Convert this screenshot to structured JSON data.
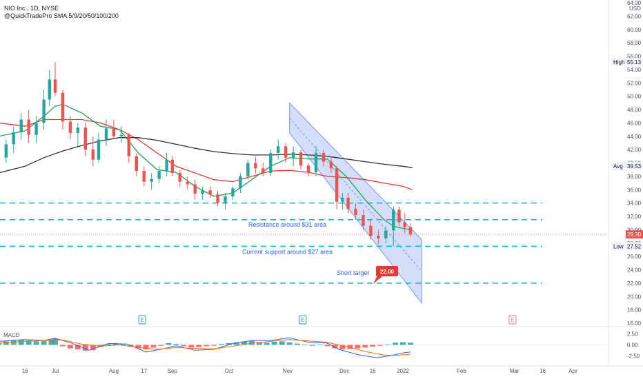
{
  "header": {
    "line1": "NIO Inc., 1D, NYSE",
    "line2": "@QuickTradePro SMA 5/9/20/50/100/200"
  },
  "chart_data": {
    "type": "candlestick",
    "y_axis": {
      "unit": "USD",
      "range": [
        16,
        64
      ],
      "ticks": [
        "64.00",
        "62.00",
        "60.00",
        "58.00",
        "56.00",
        "54.00",
        "52.00",
        "50.00",
        "48.00",
        "46.00",
        "44.00",
        "42.00",
        "40.00",
        "38.00",
        "36.00",
        "34.00",
        "32.00",
        "30.00",
        "28.00",
        "26.00",
        "24.00",
        "22.00",
        "20.00",
        "18.00",
        "16.00"
      ]
    },
    "x_axis": {
      "ticks": [
        {
          "label": "16",
          "day": 0
        },
        {
          "label": "Jul",
          "day": 16
        },
        {
          "label": "Aug",
          "day": 47
        },
        {
          "label": "17",
          "day": 63
        },
        {
          "label": "Sep",
          "day": 78
        },
        {
          "label": "Oct",
          "day": 108
        },
        {
          "label": "Nov",
          "day": 139
        },
        {
          "label": "Dec",
          "day": 169
        },
        {
          "label": "16",
          "day": 184
        },
        {
          "label": "2022",
          "day": 200
        },
        {
          "label": "Feb",
          "day": 231
        },
        {
          "label": "Mar",
          "day": 259
        },
        {
          "label": "16",
          "day": 274
        },
        {
          "label": "Apr",
          "day": 290
        }
      ]
    },
    "ohlc_samples": [
      {
        "day": -14,
        "o": 39.5,
        "h": 41.5,
        "l": 38.5,
        "c": 40.8
      },
      {
        "day": -10,
        "o": 40.8,
        "h": 43.5,
        "l": 40.0,
        "c": 42.8
      },
      {
        "day": -6,
        "o": 42.8,
        "h": 45.5,
        "l": 41.5,
        "c": 44.6
      },
      {
        "day": -2,
        "o": 44.6,
        "h": 47.5,
        "l": 43.5,
        "c": 46.5
      },
      {
        "day": 2,
        "o": 46.5,
        "h": 48.0,
        "l": 43.0,
        "c": 44.2
      },
      {
        "day": 6,
        "o": 44.2,
        "h": 47.0,
        "l": 43.0,
        "c": 46.0
      },
      {
        "day": 10,
        "o": 46.0,
        "h": 51.0,
        "l": 45.0,
        "c": 49.5
      },
      {
        "day": 13,
        "o": 49.5,
        "h": 54.0,
        "l": 48.5,
        "c": 52.5
      },
      {
        "day": 16,
        "o": 52.5,
        "h": 55.13,
        "l": 50.0,
        "c": 50.5
      },
      {
        "day": 20,
        "o": 50.5,
        "h": 51.0,
        "l": 45.0,
        "c": 46.2
      },
      {
        "day": 24,
        "o": 46.2,
        "h": 47.0,
        "l": 43.5,
        "c": 44.5
      },
      {
        "day": 28,
        "o": 44.5,
        "h": 46.0,
        "l": 42.5,
        "c": 45.3
      },
      {
        "day": 32,
        "o": 45.3,
        "h": 46.0,
        "l": 41.0,
        "c": 42.0
      },
      {
        "day": 36,
        "o": 42.0,
        "h": 44.0,
        "l": 39.5,
        "c": 40.5
      },
      {
        "day": 39,
        "o": 40.5,
        "h": 44.5,
        "l": 40.0,
        "c": 43.5
      },
      {
        "day": 43,
        "o": 43.5,
        "h": 46.5,
        "l": 42.5,
        "c": 45.2
      },
      {
        "day": 47,
        "o": 45.2,
        "h": 46.5,
        "l": 43.5,
        "c": 44.0
      },
      {
        "day": 51,
        "o": 44.0,
        "h": 45.5,
        "l": 43.0,
        "c": 44.2
      },
      {
        "day": 55,
        "o": 44.2,
        "h": 44.5,
        "l": 40.0,
        "c": 41.0
      },
      {
        "day": 59,
        "o": 41.0,
        "h": 41.5,
        "l": 38.0,
        "c": 38.8
      },
      {
        "day": 63,
        "o": 38.8,
        "h": 39.5,
        "l": 36.5,
        "c": 37.2
      },
      {
        "day": 67,
        "o": 37.2,
        "h": 38.5,
        "l": 36.0,
        "c": 37.6
      },
      {
        "day": 71,
        "o": 37.6,
        "h": 39.5,
        "l": 37.0,
        "c": 38.8
      },
      {
        "day": 75,
        "o": 38.8,
        "h": 41.5,
        "l": 38.0,
        "c": 40.5
      },
      {
        "day": 78,
        "o": 40.5,
        "h": 41.0,
        "l": 38.0,
        "c": 38.5
      },
      {
        "day": 82,
        "o": 38.5,
        "h": 39.0,
        "l": 36.5,
        "c": 37.2
      },
      {
        "day": 86,
        "o": 37.2,
        "h": 38.0,
        "l": 36.0,
        "c": 36.8
      },
      {
        "day": 90,
        "o": 36.8,
        "h": 37.5,
        "l": 34.5,
        "c": 35.4
      },
      {
        "day": 94,
        "o": 35.4,
        "h": 36.5,
        "l": 34.5,
        "c": 35.9
      },
      {
        "day": 98,
        "o": 35.9,
        "h": 36.5,
        "l": 34.8,
        "c": 35.3
      },
      {
        "day": 102,
        "o": 35.3,
        "h": 35.8,
        "l": 33.5,
        "c": 34.0
      },
      {
        "day": 106,
        "o": 34.0,
        "h": 35.5,
        "l": 33.0,
        "c": 35.0
      },
      {
        "day": 110,
        "o": 35.0,
        "h": 36.5,
        "l": 34.5,
        "c": 36.2
      },
      {
        "day": 114,
        "o": 36.2,
        "h": 38.5,
        "l": 35.5,
        "c": 38.0
      },
      {
        "day": 118,
        "o": 38.0,
        "h": 40.5,
        "l": 37.5,
        "c": 40.0
      },
      {
        "day": 122,
        "o": 40.0,
        "h": 41.0,
        "l": 38.5,
        "c": 39.2
      },
      {
        "day": 126,
        "o": 39.2,
        "h": 40.0,
        "l": 38.0,
        "c": 38.5
      },
      {
        "day": 130,
        "o": 38.5,
        "h": 42.0,
        "l": 38.0,
        "c": 41.5
      },
      {
        "day": 134,
        "o": 41.5,
        "h": 43.5,
        "l": 40.5,
        "c": 42.5
      },
      {
        "day": 138,
        "o": 42.5,
        "h": 43.0,
        "l": 40.0,
        "c": 40.8
      },
      {
        "day": 142,
        "o": 40.8,
        "h": 42.5,
        "l": 39.5,
        "c": 41.6
      },
      {
        "day": 146,
        "o": 41.6,
        "h": 42.0,
        "l": 39.0,
        "c": 39.6
      },
      {
        "day": 150,
        "o": 39.6,
        "h": 40.0,
        "l": 38.0,
        "c": 38.6
      },
      {
        "day": 154,
        "o": 38.6,
        "h": 42.5,
        "l": 38.0,
        "c": 41.5
      },
      {
        "day": 158,
        "o": 41.5,
        "h": 42.0,
        "l": 39.5,
        "c": 40.2
      },
      {
        "day": 162,
        "o": 40.2,
        "h": 41.0,
        "l": 38.5,
        "c": 39.2
      },
      {
        "day": 165,
        "o": 39.2,
        "h": 39.5,
        "l": 33.0,
        "c": 34.2
      },
      {
        "day": 168,
        "o": 34.2,
        "h": 35.5,
        "l": 33.0,
        "c": 34.8
      },
      {
        "day": 171,
        "o": 34.8,
        "h": 35.5,
        "l": 32.5,
        "c": 33.1
      },
      {
        "day": 175,
        "o": 33.1,
        "h": 34.0,
        "l": 31.5,
        "c": 32.2
      },
      {
        "day": 179,
        "o": 32.2,
        "h": 33.0,
        "l": 30.0,
        "c": 30.6
      },
      {
        "day": 183,
        "o": 30.6,
        "h": 31.5,
        "l": 28.5,
        "c": 29.1
      },
      {
        "day": 187,
        "o": 29.1,
        "h": 30.0,
        "l": 27.8,
        "c": 28.7
      },
      {
        "day": 191,
        "o": 28.7,
        "h": 30.5,
        "l": 28.0,
        "c": 29.9
      },
      {
        "day": 195,
        "o": 29.9,
        "h": 33.5,
        "l": 27.52,
        "c": 33.0
      },
      {
        "day": 198,
        "o": 33.0,
        "h": 33.5,
        "l": 30.5,
        "c": 31.1
      },
      {
        "day": 201,
        "o": 31.1,
        "h": 32.5,
        "l": 29.5,
        "c": 30.4
      },
      {
        "day": 204,
        "o": 30.4,
        "h": 31.0,
        "l": 29.0,
        "c": 29.3
      }
    ],
    "sma_50": [
      [
        -14,
        46.0
      ],
      [
        0,
        45.5
      ],
      [
        10,
        46.5
      ],
      [
        20,
        46.5
      ],
      [
        30,
        46.5
      ],
      [
        40,
        46.0
      ],
      [
        50,
        45.0
      ],
      [
        60,
        43.5
      ],
      [
        70,
        41.5
      ],
      [
        80,
        39.5
      ],
      [
        90,
        38.5
      ],
      [
        100,
        37.5
      ],
      [
        110,
        37.2
      ],
      [
        120,
        38.0
      ],
      [
        130,
        38.8
      ],
      [
        140,
        38.9
      ],
      [
        150,
        38.6
      ],
      [
        160,
        38.0
      ],
      [
        170,
        37.8
      ],
      [
        180,
        37.5
      ],
      [
        190,
        37.0
      ],
      [
        200,
        36.5
      ],
      [
        205,
        36.0
      ]
    ],
    "sma_100": [
      [
        -14,
        38.5
      ],
      [
        0,
        39.5
      ],
      [
        10,
        40.8
      ],
      [
        20,
        41.8
      ],
      [
        30,
        42.6
      ],
      [
        40,
        43.3
      ],
      [
        50,
        43.8
      ],
      [
        60,
        43.8
      ],
      [
        70,
        43.4
      ],
      [
        80,
        42.8
      ],
      [
        90,
        42.2
      ],
      [
        100,
        41.7
      ],
      [
        110,
        41.4
      ],
      [
        120,
        41.2
      ],
      [
        130,
        41.2
      ],
      [
        140,
        41.3
      ],
      [
        150,
        41.2
      ],
      [
        160,
        41.0
      ],
      [
        170,
        40.6
      ],
      [
        180,
        40.2
      ],
      [
        190,
        39.8
      ],
      [
        200,
        39.5
      ],
      [
        205,
        39.3
      ]
    ],
    "sma_20": [
      [
        -14,
        44.0
      ],
      [
        0,
        44.8
      ],
      [
        10,
        47.0
      ],
      [
        16,
        48.5
      ],
      [
        20,
        48.8
      ],
      [
        30,
        47.5
      ],
      [
        40,
        45.5
      ],
      [
        50,
        45.0
      ],
      [
        60,
        41.5
      ],
      [
        70,
        39.0
      ],
      [
        80,
        38.6
      ],
      [
        90,
        36.5
      ],
      [
        100,
        35.0
      ],
      [
        110,
        35.5
      ],
      [
        120,
        37.5
      ],
      [
        130,
        39.5
      ],
      [
        140,
        40.8
      ],
      [
        150,
        40.6
      ],
      [
        160,
        40.6
      ],
      [
        170,
        38.0
      ],
      [
        180,
        34.5
      ],
      [
        190,
        31.5
      ],
      [
        195,
        30.5
      ],
      [
        200,
        30.2
      ],
      [
        204,
        30.0
      ]
    ],
    "last_price": 29.3,
    "price_labels": [
      {
        "name": "High",
        "value": "55.13"
      },
      {
        "name": "Avg",
        "value": "39.53"
      },
      {
        "name": "Low",
        "value": "27.52"
      }
    ],
    "levels": [
      {
        "price": 34.0,
        "label": ""
      },
      {
        "price": 31.5,
        "label": "Resistance around $31 area"
      },
      {
        "price": 27.52,
        "label": "Current support around $27 area"
      },
      {
        "price": 22.0,
        "label": "Short target"
      }
    ],
    "channel": {
      "upper": [
        [
          140,
          49.0
        ],
        [
          210,
          28.5
        ]
      ],
      "lower": [
        [
          140,
          44.5
        ],
        [
          210,
          19.0
        ]
      ]
    },
    "target_badge": "22.00",
    "earnings_marker": "E",
    "earnings_days": [
      62,
      147,
      258
    ],
    "macd": {
      "title": "MACD",
      "ticks": [
        "2.50",
        "0.00",
        "-2.50"
      ],
      "range": [
        -3.5,
        3.5
      ],
      "histogram": [
        [
          -14,
          0.5
        ],
        [
          -10,
          0.8
        ],
        [
          -6,
          1.0
        ],
        [
          -2,
          1.2
        ],
        [
          2,
          1.0
        ],
        [
          6,
          0.8
        ],
        [
          10,
          0.9
        ],
        [
          14,
          1.2
        ],
        [
          16,
          1.4
        ],
        [
          20,
          -0.3
        ],
        [
          24,
          -0.8
        ],
        [
          28,
          -1.0
        ],
        [
          32,
          -1.3
        ],
        [
          36,
          -1.2
        ],
        [
          40,
          -0.5
        ],
        [
          44,
          0.2
        ],
        [
          48,
          0.4
        ],
        [
          52,
          0.2
        ],
        [
          56,
          -0.3
        ],
        [
          60,
          -0.8
        ],
        [
          64,
          -1.0
        ],
        [
          68,
          -0.6
        ],
        [
          72,
          -0.2
        ],
        [
          76,
          0.4
        ],
        [
          80,
          0.2
        ],
        [
          84,
          -0.3
        ],
        [
          88,
          -0.6
        ],
        [
          92,
          -0.5
        ],
        [
          96,
          -0.3
        ],
        [
          100,
          -0.2
        ],
        [
          104,
          0.2
        ],
        [
          108,
          0.4
        ],
        [
          112,
          0.6
        ],
        [
          116,
          0.8
        ],
        [
          120,
          0.9
        ],
        [
          124,
          0.6
        ],
        [
          128,
          0.5
        ],
        [
          132,
          0.7
        ],
        [
          136,
          0.8
        ],
        [
          140,
          0.6
        ],
        [
          144,
          0.3
        ],
        [
          148,
          0.1
        ],
        [
          152,
          -0.2
        ],
        [
          156,
          0.1
        ],
        [
          160,
          -0.3
        ],
        [
          164,
          -0.8
        ],
        [
          168,
          -1.0
        ],
        [
          172,
          -0.9
        ],
        [
          176,
          -0.8
        ],
        [
          180,
          -0.6
        ],
        [
          184,
          -0.4
        ],
        [
          188,
          -0.2
        ],
        [
          192,
          0.1
        ],
        [
          196,
          0.5
        ],
        [
          200,
          0.6
        ],
        [
          204,
          0.5
        ]
      ],
      "macd_line": [
        [
          -14,
          0.8
        ],
        [
          0,
          1.2
        ],
        [
          10,
          1.0
        ],
        [
          16,
          1.5
        ],
        [
          24,
          0.5
        ],
        [
          34,
          -1.2
        ],
        [
          44,
          0.3
        ],
        [
          54,
          0.2
        ],
        [
          64,
          -1.6
        ],
        [
          72,
          -1.0
        ],
        [
          80,
          -0.2
        ],
        [
          90,
          -1.2
        ],
        [
          100,
          -1.0
        ],
        [
          110,
          0.3
        ],
        [
          120,
          1.0
        ],
        [
          130,
          1.0
        ],
        [
          140,
          1.6
        ],
        [
          150,
          0.6
        ],
        [
          160,
          0.4
        ],
        [
          166,
          -1.0
        ],
        [
          176,
          -2.2
        ],
        [
          186,
          -2.9
        ],
        [
          194,
          -2.4
        ],
        [
          200,
          -1.8
        ],
        [
          204,
          -1.6
        ]
      ],
      "signal_line": [
        [
          -14,
          0.4
        ],
        [
          0,
          0.8
        ],
        [
          10,
          1.0
        ],
        [
          20,
          1.1
        ],
        [
          30,
          0.2
        ],
        [
          40,
          -0.3
        ],
        [
          50,
          0.0
        ],
        [
          60,
          -0.6
        ],
        [
          70,
          -1.0
        ],
        [
          80,
          -0.6
        ],
        [
          90,
          -0.8
        ],
        [
          100,
          -0.9
        ],
        [
          110,
          -0.3
        ],
        [
          120,
          0.4
        ],
        [
          130,
          0.8
        ],
        [
          140,
          1.2
        ],
        [
          150,
          0.9
        ],
        [
          160,
          0.6
        ],
        [
          170,
          -0.4
        ],
        [
          180,
          -1.5
        ],
        [
          190,
          -2.3
        ],
        [
          196,
          -2.4
        ],
        [
          204,
          -2.1
        ]
      ]
    },
    "colors": {
      "up": "#26a69a",
      "down": "#ef5350",
      "sma_50": "#26a05a",
      "sma_100": "#e53935",
      "sma_20": "#2f2f2f",
      "levels": "#00bcd4",
      "channel_fill": "#bbcdf8",
      "channel_stroke": "#7895e8",
      "macd_line": "#2962ff",
      "signal_line": "#ff6d00",
      "annotation": "#2962ff",
      "badge": "#e53935"
    }
  }
}
